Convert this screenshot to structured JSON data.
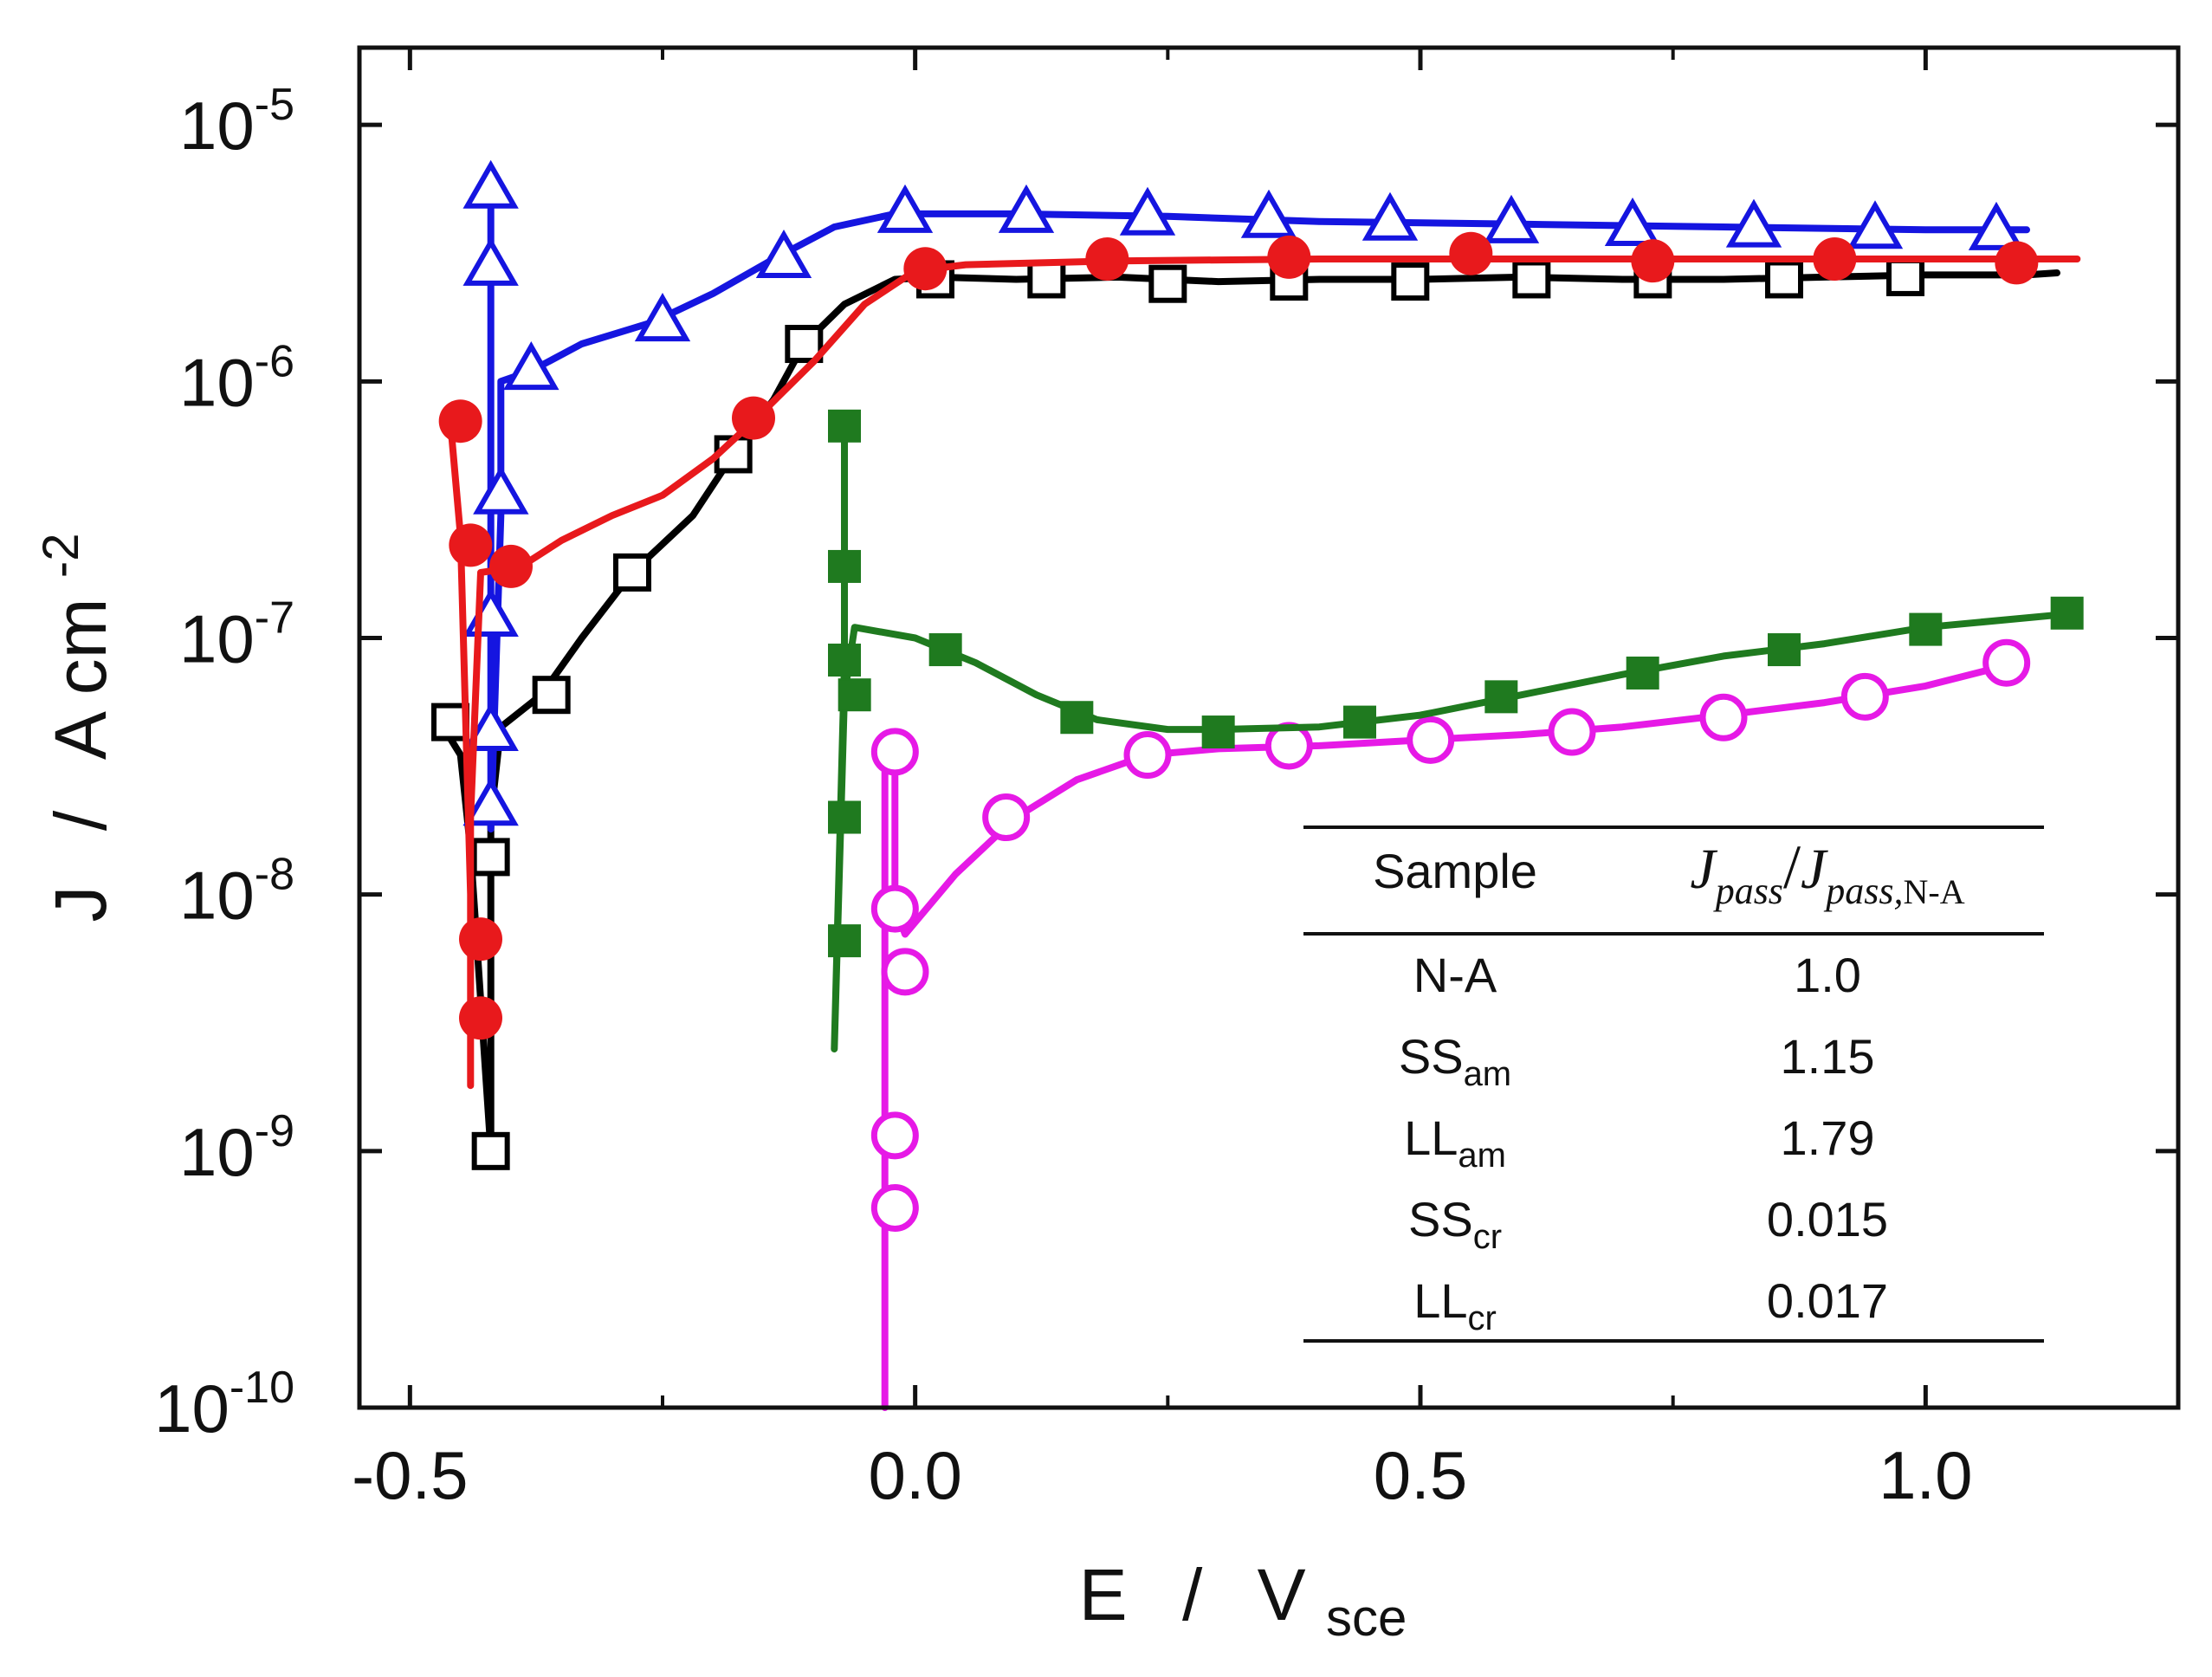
{
  "chart_data": {
    "type": "line",
    "x_axis": {
      "label_main": "E",
      "label_sep": "/",
      "label_unit": "V",
      "label_unit_sub": "sce",
      "range": [
        -0.55,
        1.25
      ],
      "ticks": [
        {
          "value": -0.5,
          "label": "-0.5"
        },
        {
          "value": 0.0,
          "label": "0.0"
        },
        {
          "value": 0.5,
          "label": "0.5"
        },
        {
          "value": 1.0,
          "label": "1.0"
        }
      ]
    },
    "y_axis": {
      "label_main": "J",
      "label_sep": "/",
      "label_unit": "A cm",
      "label_unit_sup": "-2",
      "scale": "log",
      "range": [
        1e-10,
        2e-05
      ],
      "ticks": [
        {
          "value": 1e-10,
          "base": "10",
          "exp": "-10"
        },
        {
          "value": 1e-09,
          "base": "10",
          "exp": "-9"
        },
        {
          "value": 1e-08,
          "base": "10",
          "exp": "-8"
        },
        {
          "value": 1e-07,
          "base": "10",
          "exp": "-7"
        },
        {
          "value": 1e-06,
          "base": "10",
          "exp": "-6"
        },
        {
          "value": 1e-05,
          "base": "10",
          "exp": "-5"
        }
      ]
    },
    "grid": false,
    "series": [
      {
        "id": "na",
        "color": "#000000",
        "marker": "open-square",
        "line": [
          [
            -0.47,
            4.7e-08
          ],
          [
            -0.45,
            3.5e-08
          ],
          [
            -0.44,
            1.5e-08
          ],
          [
            -0.42,
            1e-09
          ],
          [
            -0.42,
            2e-08
          ],
          [
            -0.41,
            4.5e-08
          ],
          [
            -0.37,
            6e-08
          ],
          [
            -0.33,
            1e-07
          ],
          [
            -0.28,
            1.8e-07
          ],
          [
            -0.22,
            3e-07
          ],
          [
            -0.18,
            5.2e-07
          ],
          [
            -0.14,
            8.5e-07
          ],
          [
            -0.11,
            1.4e-06
          ],
          [
            -0.07,
            2e-06
          ],
          [
            -0.02,
            2.5e-06
          ],
          [
            0.02,
            2.55e-06
          ],
          [
            0.1,
            2.5e-06
          ],
          [
            0.2,
            2.55e-06
          ],
          [
            0.3,
            2.45e-06
          ],
          [
            0.4,
            2.5e-06
          ],
          [
            0.5,
            2.5e-06
          ],
          [
            0.6,
            2.55e-06
          ],
          [
            0.7,
            2.5e-06
          ],
          [
            0.8,
            2.5e-06
          ],
          [
            0.9,
            2.55e-06
          ],
          [
            1.0,
            2.6e-06
          ],
          [
            1.1,
            2.6e-06
          ],
          [
            1.13,
            2.65e-06
          ]
        ],
        "markers": [
          [
            -0.46,
            4.7e-08
          ],
          [
            -0.42,
            1.4e-08
          ],
          [
            -0.42,
            1e-09
          ],
          [
            -0.36,
            6e-08
          ],
          [
            -0.28,
            1.8e-07
          ],
          [
            -0.18,
            5.2e-07
          ],
          [
            -0.11,
            1.4e-06
          ],
          [
            0.02,
            2.5e-06
          ],
          [
            0.13,
            2.5e-06
          ],
          [
            0.25,
            2.4e-06
          ],
          [
            0.37,
            2.45e-06
          ],
          [
            0.49,
            2.45e-06
          ],
          [
            0.61,
            2.5e-06
          ],
          [
            0.73,
            2.5e-06
          ],
          [
            0.86,
            2.5e-06
          ],
          [
            0.98,
            2.55e-06
          ]
        ]
      },
      {
        "id": "ss_am",
        "color": "#e8191c",
        "marker": "filled-circle",
        "line": [
          [
            -0.46,
            7e-07
          ],
          [
            -0.45,
            2.5e-07
          ],
          [
            -0.44,
            1e-08
          ],
          [
            -0.44,
            1.8e-09
          ],
          [
            -0.44,
            2e-08
          ],
          [
            -0.43,
            1.8e-07
          ],
          [
            -0.39,
            1.9e-07
          ],
          [
            -0.35,
            2.4e-07
          ],
          [
            -0.3,
            3e-07
          ],
          [
            -0.25,
            3.6e-07
          ],
          [
            -0.2,
            5e-07
          ],
          [
            -0.16,
            7e-07
          ],
          [
            -0.1,
            1.2e-06
          ],
          [
            -0.05,
            2e-06
          ],
          [
            0.0,
            2.7e-06
          ],
          [
            0.05,
            2.85e-06
          ],
          [
            0.2,
            2.95e-06
          ],
          [
            0.4,
            3e-06
          ],
          [
            0.6,
            3e-06
          ],
          [
            0.8,
            3e-06
          ],
          [
            1.0,
            3e-06
          ],
          [
            1.15,
            3e-06
          ]
        ],
        "markers": [
          [
            -0.45,
            7e-07
          ],
          [
            -0.44,
            2.3e-07
          ],
          [
            -0.43,
            6.7e-09
          ],
          [
            -0.43,
            3.3e-09
          ],
          [
            -0.4,
            1.9e-07
          ],
          [
            -0.16,
            7.2e-07
          ],
          [
            0.01,
            2.75e-06
          ],
          [
            0.19,
            3e-06
          ],
          [
            0.37,
            3.05e-06
          ],
          [
            0.55,
            3.15e-06
          ],
          [
            0.73,
            2.95e-06
          ],
          [
            0.91,
            3e-06
          ],
          [
            1.09,
            2.9e-06
          ]
        ]
      },
      {
        "id": "ll_am",
        "color": "#1515e0",
        "marker": "open-triangle",
        "line": [
          [
            -0.42,
            6.5e-06
          ],
          [
            -0.42,
            1.8e-08
          ],
          [
            -0.41,
            3e-07
          ],
          [
            -0.41,
            1e-06
          ],
          [
            -0.38,
            1.1e-06
          ],
          [
            -0.33,
            1.4e-06
          ],
          [
            -0.26,
            1.7e-06
          ],
          [
            -0.2,
            2.2e-06
          ],
          [
            -0.14,
            3e-06
          ],
          [
            -0.08,
            4e-06
          ],
          [
            -0.02,
            4.5e-06
          ],
          [
            0.1,
            4.5e-06
          ],
          [
            0.25,
            4.4e-06
          ],
          [
            0.4,
            4.2e-06
          ],
          [
            0.6,
            4.1e-06
          ],
          [
            0.8,
            4e-06
          ],
          [
            1.0,
            3.9e-06
          ],
          [
            1.1,
            3.9e-06
          ]
        ],
        "markers": [
          [
            -0.42,
            5.6e-06
          ],
          [
            -0.42,
            2.8e-06
          ],
          [
            -0.41,
            3.6e-07
          ],
          [
            -0.42,
            1.2e-07
          ],
          [
            -0.42,
            4.3e-08
          ],
          [
            -0.42,
            2.2e-08
          ],
          [
            -0.38,
            1.1e-06
          ],
          [
            -0.25,
            1.7e-06
          ],
          [
            -0.13,
            3e-06
          ],
          [
            -0.01,
            4.5e-06
          ],
          [
            0.11,
            4.5e-06
          ],
          [
            0.23,
            4.4e-06
          ],
          [
            0.35,
            4.3e-06
          ],
          [
            0.47,
            4.2e-06
          ],
          [
            0.59,
            4.1e-06
          ],
          [
            0.71,
            4e-06
          ],
          [
            0.83,
            3.95e-06
          ],
          [
            0.95,
            3.9e-06
          ],
          [
            1.07,
            3.85e-06
          ]
        ]
      },
      {
        "id": "ss_cr",
        "color": "#1f7a1f",
        "marker": "filled-square",
        "line": [
          [
            -0.07,
            7e-07
          ],
          [
            -0.07,
            8e-08
          ],
          [
            -0.08,
            2.5e-09
          ],
          [
            -0.07,
            6e-08
          ],
          [
            -0.06,
            1.1e-07
          ],
          [
            0.0,
            1e-07
          ],
          [
            0.06,
            8e-08
          ],
          [
            0.12,
            6e-08
          ],
          [
            0.18,
            4.8e-08
          ],
          [
            0.25,
            4.4e-08
          ],
          [
            0.3,
            4.4e-08
          ],
          [
            0.4,
            4.5e-08
          ],
          [
            0.5,
            5e-08
          ],
          [
            0.6,
            6e-08
          ],
          [
            0.7,
            7.2e-08
          ],
          [
            0.8,
            8.5e-08
          ],
          [
            0.9,
            9.5e-08
          ],
          [
            1.0,
            1.1e-07
          ],
          [
            1.15,
            1.25e-07
          ]
        ],
        "markers": [
          [
            -0.07,
            6.7e-07
          ],
          [
            -0.07,
            1.9e-07
          ],
          [
            -0.07,
            8.2e-08
          ],
          [
            -0.06,
            6e-08
          ],
          [
            -0.07,
            2e-08
          ],
          [
            -0.07,
            6.6e-09
          ],
          [
            0.03,
            9e-08
          ],
          [
            0.16,
            4.9e-08
          ],
          [
            0.3,
            4.3e-08
          ],
          [
            0.44,
            4.7e-08
          ],
          [
            0.58,
            5.9e-08
          ],
          [
            0.72,
            7.3e-08
          ],
          [
            0.86,
            9e-08
          ],
          [
            1.0,
            1.08e-07
          ],
          [
            1.14,
            1.25e-07
          ]
        ]
      },
      {
        "id": "ll_cr",
        "color": "#e619e6",
        "marker": "open-circle",
        "line": [
          [
            -0.03,
            1e-10
          ],
          [
            -0.03,
            3.8e-08
          ],
          [
            -0.02,
            3e-08
          ],
          [
            -0.02,
            9e-09
          ],
          [
            -0.01,
            7e-09
          ],
          [
            0.04,
            1.2e-08
          ],
          [
            0.1,
            2e-08
          ],
          [
            0.16,
            2.8e-08
          ],
          [
            0.23,
            3.5e-08
          ],
          [
            0.3,
            3.7e-08
          ],
          [
            0.4,
            3.8e-08
          ],
          [
            0.5,
            4e-08
          ],
          [
            0.6,
            4.2e-08
          ],
          [
            0.7,
            4.5e-08
          ],
          [
            0.8,
            5e-08
          ],
          [
            0.9,
            5.6e-08
          ],
          [
            1.0,
            6.5e-08
          ],
          [
            1.09,
            8e-08
          ]
        ],
        "markers": [
          [
            -0.02,
            3.6e-08
          ],
          [
            -0.02,
            8.8e-09
          ],
          [
            -0.01,
            5e-09
          ],
          [
            -0.02,
            1.15e-09
          ],
          [
            -0.02,
            6e-10
          ],
          [
            0.09,
            2e-08
          ],
          [
            0.23,
            3.5e-08
          ],
          [
            0.37,
            3.8e-08
          ],
          [
            0.51,
            4e-08
          ],
          [
            0.65,
            4.3e-08
          ],
          [
            0.8,
            4.9e-08
          ],
          [
            0.94,
            5.9e-08
          ],
          [
            1.08,
            8e-08
          ]
        ]
      }
    ],
    "table": {
      "header_sample": "Sample",
      "header_ratio": {
        "J1": "J",
        "sub1": "pass",
        "slash": "/",
        "J2": "J",
        "sub2": "pass,",
        "sub2b": "N-A"
      },
      "rows": [
        {
          "base": "N-A",
          "sub": "",
          "value": "1.0"
        },
        {
          "base": "SS",
          "sub": "am",
          "value": "1.15"
        },
        {
          "base": "LL",
          "sub": "am",
          "value": "1.79"
        },
        {
          "base": "SS",
          "sub": "cr",
          "value": "0.015"
        },
        {
          "base": "LL",
          "sub": "cr",
          "value": "0.017"
        }
      ]
    }
  }
}
